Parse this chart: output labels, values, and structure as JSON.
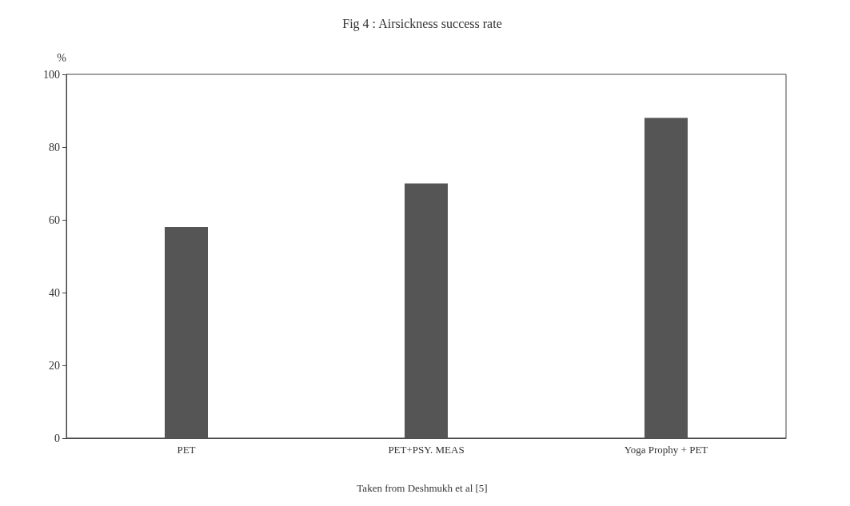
{
  "chart_data": {
    "type": "bar",
    "title": "Fig 4 : Airsickness success rate",
    "ylabel": "%",
    "categories": [
      "PET",
      "PET+PSY. MEAS",
      "Yoga Prophy + PET"
    ],
    "values": [
      58,
      70,
      88
    ],
    "color": "#555555",
    "ylim": [
      0,
      100
    ],
    "yticks": [
      0,
      20,
      40,
      60,
      80,
      100
    ],
    "grid": false,
    "annotations": [
      "Taken from Deshmukh et al [5]"
    ]
  }
}
